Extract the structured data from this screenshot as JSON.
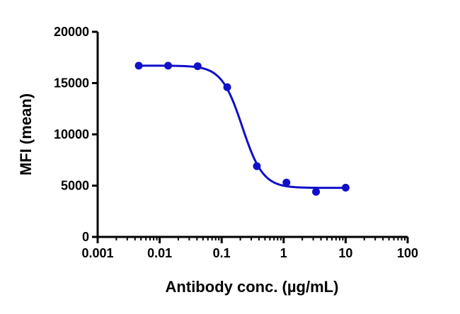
{
  "chart_data": {
    "type": "scatter",
    "title": "",
    "xlabel": "Antibody conc. (µg/mL)",
    "ylabel": "MFI (mean)",
    "x_scale": "log",
    "xlim": [
      0.001,
      100
    ],
    "ylim": [
      0,
      20000
    ],
    "x_ticks": [
      0.001,
      0.01,
      0.1,
      1,
      10,
      100
    ],
    "x_tick_labels": [
      "0.001",
      "0.01",
      "0.1",
      "1",
      "10",
      "100"
    ],
    "y_ticks": [
      0,
      5000,
      10000,
      15000,
      20000
    ],
    "y_tick_labels": [
      "0",
      "5000",
      "10000",
      "15000",
      "20000"
    ],
    "grid": false,
    "legend": "none",
    "series": [
      {
        "color": "#1010c8",
        "marker": "circle",
        "points": [
          {
            "x": 0.0046,
            "y": 16700
          },
          {
            "x": 0.0137,
            "y": 16700
          },
          {
            "x": 0.041,
            "y": 16650
          },
          {
            "x": 0.123,
            "y": 14600
          },
          {
            "x": 0.37,
            "y": 6900
          },
          {
            "x": 1.11,
            "y": 5300
          },
          {
            "x": 3.33,
            "y": 4400
          },
          {
            "x": 10,
            "y": 4800
          }
        ],
        "fit": {
          "model": "4PL",
          "top": 16700,
          "bottom": 4780,
          "ec50": 0.215,
          "hill": 2.6,
          "x_range": [
            0.0046,
            10
          ]
        }
      }
    ]
  }
}
